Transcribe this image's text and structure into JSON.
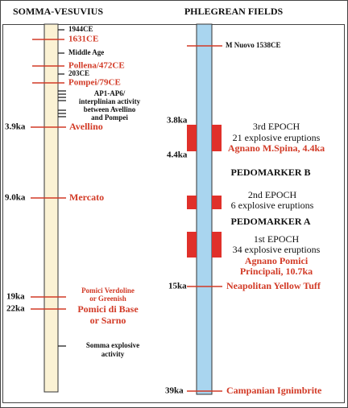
{
  "header": {
    "left": "SOMMA-VESUVIUS",
    "right": "PHLEGREAN FIELDS"
  },
  "somma_vesuvius": {
    "events": [
      {
        "label": "1944CE"
      },
      {
        "label": "1631CE"
      },
      {
        "label": "Middle Age"
      },
      {
        "label": "Pollena/472CE"
      },
      {
        "label": "203CE"
      },
      {
        "label": "Pompei/79CE"
      },
      {
        "label": [
          "AP1-AP6/",
          "interplinian activity",
          "between Avellino",
          "and Pompei"
        ]
      },
      {
        "age": "3.9ka",
        "label": "Avellino"
      },
      {
        "age": "9.0ka",
        "label": "Mercato"
      },
      {
        "age": "19ka",
        "label": [
          "Pomici Verdoline",
          "or Greenish"
        ]
      },
      {
        "age": "22ka",
        "label": [
          "Pomici di Base",
          "or Sarno"
        ]
      },
      {
        "label": [
          "Somma explosive",
          "activity"
        ]
      }
    ]
  },
  "phlegrean_fields": {
    "events": [
      {
        "label": "M Nuovo 1538CE"
      },
      {
        "age": "15ka",
        "label": "Neapolitan Yellow Tuff"
      },
      {
        "age": "39ka",
        "label": "Campanian Ignimbrite"
      }
    ],
    "epochs": [
      {
        "age_top": "3.8ka",
        "age_bottom": "4.4ka",
        "title": "3rd EPOCH",
        "description": "21 explosive eruptions",
        "example": [
          "Agnano M.Spina, 4.4ka"
        ]
      },
      {
        "title": "2nd EPOCH",
        "description": "6 explosive eruptions"
      },
      {
        "title": "1st EPOCH",
        "description": "34 explosive eruptions",
        "example": [
          "Agnano Pomici",
          "Principali, 10.7ka"
        ]
      }
    ],
    "pedomarkers": [
      "PEDOMARKER B",
      "PEDOMARKER A"
    ]
  }
}
